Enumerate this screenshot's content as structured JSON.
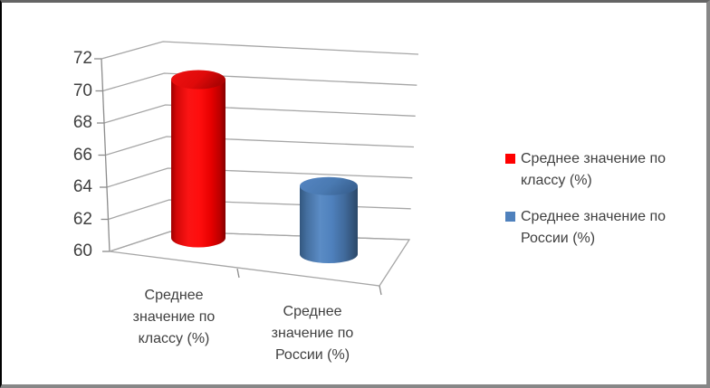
{
  "chart_data": {
    "type": "bar",
    "subtype": "3d-cylinder",
    "title": "",
    "xlabel": "",
    "ylabel": "",
    "categories": [
      "Среднее значение по классу (%)",
      "Среднее значение по России (%)"
    ],
    "series": [
      {
        "name": "Среднее значение по классу (%)",
        "values": [
          70
        ],
        "color": "#ff0000"
      },
      {
        "name": "Среднее значение по России (%)",
        "values": [
          64.3
        ],
        "color": "#4f81bd"
      }
    ],
    "ylim": [
      60,
      72
    ],
    "yticks": [
      60,
      62,
      64,
      66,
      68,
      70,
      72
    ],
    "grid": true,
    "legend_position": "right",
    "axis_text_color": "#404040",
    "gridline_color": "#a6a6a6"
  },
  "legend": {
    "items": [
      {
        "label": "Среднее значение по классу (%)",
        "color": "#ff0000"
      },
      {
        "label": "Среднее значение по России (%)",
        "color": "#4f81bd"
      }
    ]
  }
}
